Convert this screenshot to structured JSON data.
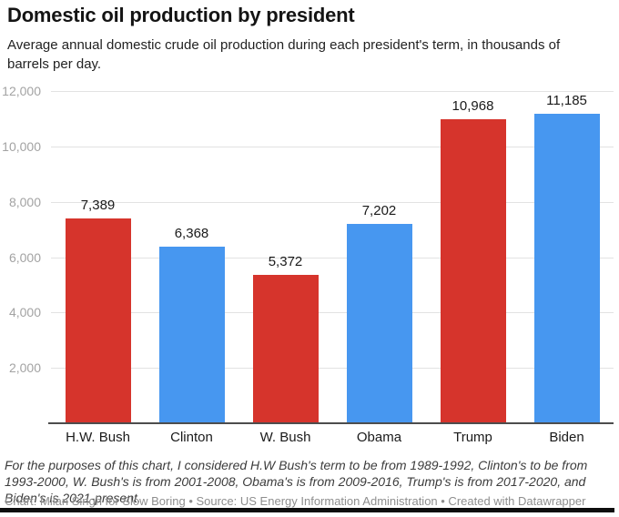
{
  "page": {
    "title": "Domestic oil production by president",
    "subtitle": "Average annual domestic crude oil production during each president's term, in thousands of barrels per day.",
    "footnote": "For the purposes of this chart, I considered H.W Bush's term to be from 1989-1992, Clinton's to be from 1993-2000, W. Bush's is from 2001-2008, Obama's is from 2009-2016, Trump's is from 2017-2020, and Biden's is 2021-present.",
    "credit": "Chart: Milan Singh for Slow Boring • Source: US Energy Information Administration • Created with Datawrapper"
  },
  "colors": {
    "republican_red": "#d6342c",
    "democrat_blue": "#4797f0",
    "axis_line": "#4d4d4d",
    "gridline": "#e2e2e2",
    "ytick_text": "#a3a3a3",
    "label_text": "#1a1a1a"
  },
  "chart_data": {
    "type": "bar",
    "title": "Domestic oil production by president",
    "subtitle": "Average annual domestic crude oil production during each president's term, in thousands of barrels per day.",
    "categories": [
      "H.W. Bush",
      "Clinton",
      "W. Bush",
      "Obama",
      "Trump",
      "Biden"
    ],
    "values": [
      7389,
      6368,
      5372,
      7202,
      10968,
      11185
    ],
    "value_labels": [
      "7,389",
      "6,368",
      "5,372",
      "7,202",
      "10,968",
      "11,185"
    ],
    "bar_colors": [
      "#d6342c",
      "#4797f0",
      "#d6342c",
      "#4797f0",
      "#d6342c",
      "#4797f0"
    ],
    "xlabel": "",
    "ylabel": "",
    "ylim": [
      0,
      12000
    ],
    "yticks": [
      2000,
      4000,
      6000,
      8000,
      10000,
      12000
    ],
    "ytick_labels": [
      "2,000",
      "4,000",
      "6,000",
      "8,000",
      "10,000",
      "12,000"
    ],
    "grid": "horizontal",
    "legend": "none"
  }
}
